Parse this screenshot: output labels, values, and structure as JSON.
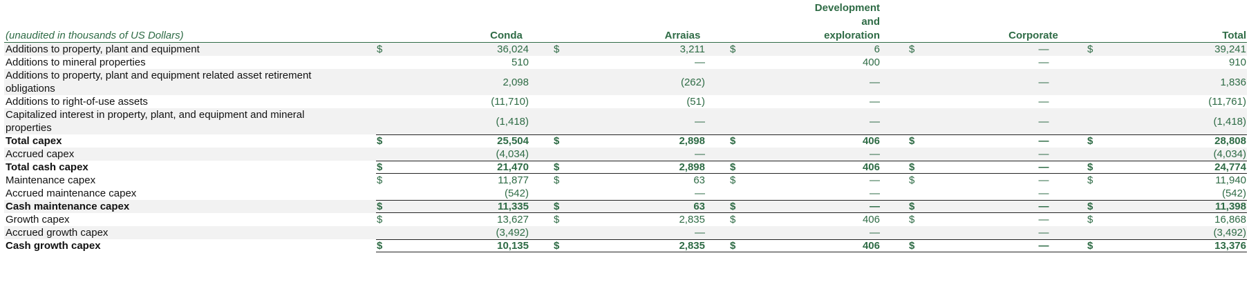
{
  "caption": "(unaudited in thousands of US Dollars)",
  "columns": {
    "conda": "Conda",
    "arraias": "Arraias",
    "dev_line1": "Development",
    "dev_line2": "and",
    "dev_line3": "exploration",
    "corporate": "Corporate",
    "total": "Total"
  },
  "rows": [
    {
      "label": "Additions to property, plant and equipment",
      "dollar": true,
      "values": [
        "36,024",
        "3,211",
        "6",
        "—",
        "39,241"
      ]
    },
    {
      "label": "Additions to mineral properties",
      "dollar": false,
      "values": [
        "510",
        "—",
        "400",
        "—",
        "910"
      ]
    },
    {
      "label": "Additions to property, plant and equipment related asset retirement obligations",
      "dollar": false,
      "values": [
        "2,098",
        "(262)",
        "—",
        "—",
        "1,836"
      ]
    },
    {
      "label": "Additions to right-of-use assets",
      "dollar": false,
      "values": [
        "(11,710)",
        "(51)",
        "—",
        "—",
        "(11,761)"
      ]
    },
    {
      "label": "Capitalized interest in property, plant, and equipment and mineral properties",
      "dollar": false,
      "values": [
        "(1,418)",
        "—",
        "—",
        "—",
        "(1,418)"
      ]
    },
    {
      "label": "Total capex",
      "dollar": true,
      "values": [
        "25,504",
        "2,898",
        "406",
        "—",
        "28,808"
      ]
    },
    {
      "label": "Accrued capex",
      "dollar": false,
      "values": [
        "(4,034)",
        "—",
        "—",
        "—",
        "(4,034)"
      ]
    },
    {
      "label": "Total cash capex",
      "dollar": true,
      "values": [
        "21,470",
        "2,898",
        "406",
        "—",
        "24,774"
      ]
    },
    {
      "label": "Maintenance capex",
      "dollar": true,
      "values": [
        "11,877",
        "63",
        "—",
        "—",
        "11,940"
      ]
    },
    {
      "label": "Accrued maintenance capex",
      "dollar": false,
      "values": [
        "(542)",
        "—",
        "—",
        "—",
        "(542)"
      ]
    },
    {
      "label": "Cash maintenance capex",
      "dollar": true,
      "values": [
        "11,335",
        "63",
        "—",
        "—",
        "11,398"
      ]
    },
    {
      "label": "Growth capex",
      "dollar": true,
      "values": [
        "13,627",
        "2,835",
        "406",
        "—",
        "16,868"
      ]
    },
    {
      "label": "Accrued growth capex",
      "dollar": false,
      "values": [
        "(3,492)",
        "—",
        "—",
        "—",
        "(3,492)"
      ]
    },
    {
      "label": "Cash growth capex",
      "dollar": true,
      "values": [
        "10,135",
        "2,835",
        "406",
        "—",
        "13,376"
      ]
    }
  ],
  "currency_symbol": "$",
  "colors": {
    "accent_green": "#2e6b45",
    "row_shade": "#f2f2f2"
  }
}
